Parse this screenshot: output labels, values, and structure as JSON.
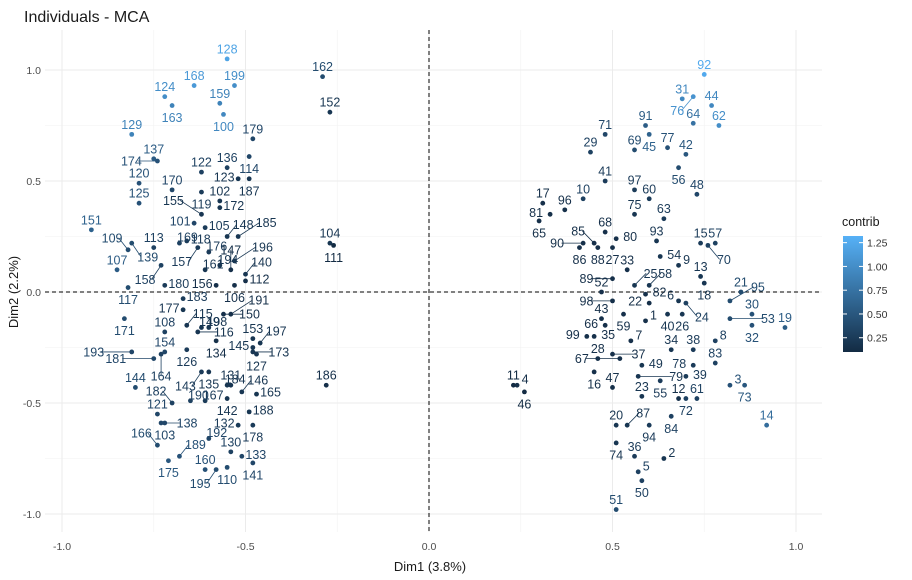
{
  "chart_data": {
    "type": "scatter",
    "title": "Individuals - MCA",
    "xlabel": "Dim1 (3.8%)",
    "ylabel": "Dim2 (2.2%)",
    "xlim": [
      -1.0,
      1.0
    ],
    "ylim": [
      -1.0,
      1.0
    ],
    "xticks": [
      "-1.0",
      "-0.5",
      "0.0",
      "0.5",
      "1.0"
    ],
    "yticks": [
      "-1.0",
      "-0.5",
      "0.0",
      "0.5",
      "1.0"
    ],
    "grid": true,
    "reference_lines": "dashed at x=0 and y=0",
    "legend": {
      "title": "contrib",
      "placement": "right",
      "ticks": [
        "0.25",
        "0.50",
        "0.75",
        "1.00",
        "1.25"
      ],
      "range": [
        0.1,
        1.32
      ],
      "color_low": "#132B43",
      "color_high": "#56B1F7"
    },
    "points": [
      {
        "id": "1",
        "x": 0.59,
        "y": -0.13,
        "c": 0.15
      },
      {
        "id": "2",
        "x": 0.64,
        "y": -0.75,
        "c": 0.2
      },
      {
        "id": "3",
        "x": 0.82,
        "y": -0.42,
        "c": 0.45
      },
      {
        "id": "4",
        "x": 0.24,
        "y": -0.42,
        "c": 0.15
      },
      {
        "id": "5",
        "x": 0.57,
        "y": -0.81,
        "c": 0.3
      },
      {
        "id": "6",
        "x": 0.68,
        "y": -0.04,
        "c": 0.2
      },
      {
        "id": "7",
        "x": 0.55,
        "y": -0.22,
        "c": 0.15
      },
      {
        "id": "8",
        "x": 0.78,
        "y": -0.22,
        "c": 0.3
      },
      {
        "id": "9",
        "x": 0.68,
        "y": 0.12,
        "c": 0.2
      },
      {
        "id": "10",
        "x": 0.42,
        "y": 0.42,
        "c": 0.3
      },
      {
        "id": "11",
        "x": 0.23,
        "y": -0.42,
        "c": 0.1
      },
      {
        "id": "12",
        "x": 0.68,
        "y": -0.48,
        "c": 0.15
      },
      {
        "id": "13",
        "x": 0.74,
        "y": 0.07,
        "c": 0.2
      },
      {
        "id": "14",
        "x": 0.92,
        "y": -0.6,
        "c": 0.7
      },
      {
        "id": "15",
        "x": 0.74,
        "y": 0.22,
        "c": 0.25
      },
      {
        "id": "16",
        "x": 0.45,
        "y": -0.36,
        "c": 0.15
      },
      {
        "id": "17",
        "x": 0.31,
        "y": 0.4,
        "c": 0.15
      },
      {
        "id": "18",
        "x": 0.75,
        "y": 0.04,
        "c": 0.2
      },
      {
        "id": "19",
        "x": 0.97,
        "y": -0.16,
        "c": 0.55
      },
      {
        "id": "20",
        "x": 0.51,
        "y": -0.6,
        "c": 0.2
      },
      {
        "id": "21",
        "x": 0.85,
        "y": 0.0,
        "c": 0.4
      },
      {
        "id": "22",
        "x": 0.6,
        "y": -0.05,
        "c": 0.15
      },
      {
        "id": "23",
        "x": 0.58,
        "y": -0.47,
        "c": 0.2
      },
      {
        "id": "24",
        "x": 0.7,
        "y": -0.05,
        "c": 0.3
      },
      {
        "id": "25",
        "x": 0.56,
        "y": 0.03,
        "c": 0.2
      },
      {
        "id": "26",
        "x": 0.69,
        "y": -0.1,
        "c": 0.2
      },
      {
        "id": "27",
        "x": 0.5,
        "y": 0.2,
        "c": 0.15
      },
      {
        "id": "28",
        "x": 0.46,
        "y": -0.3,
        "c": 0.15
      },
      {
        "id": "29",
        "x": 0.44,
        "y": 0.63,
        "c": 0.3
      },
      {
        "id": "30",
        "x": 0.88,
        "y": -0.1,
        "c": 0.45
      },
      {
        "id": "31",
        "x": 0.69,
        "y": 0.87,
        "c": 0.95
      },
      {
        "id": "32",
        "x": 0.88,
        "y": -0.15,
        "c": 0.45
      },
      {
        "id": "33",
        "x": 0.54,
        "y": 0.1,
        "c": 0.15
      },
      {
        "id": "34",
        "x": 0.66,
        "y": -0.26,
        "c": 0.2
      },
      {
        "id": "35",
        "x": 0.45,
        "y": -0.2,
        "c": 0.15
      },
      {
        "id": "36",
        "x": 0.56,
        "y": -0.74,
        "c": 0.25
      },
      {
        "id": "37",
        "x": 0.5,
        "y": -0.28,
        "c": 0.15
      },
      {
        "id": "38",
        "x": 0.72,
        "y": -0.26,
        "c": 0.25
      },
      {
        "id": "39",
        "x": 0.7,
        "y": -0.38,
        "c": 0.25
      },
      {
        "id": "40",
        "x": 0.65,
        "y": -0.1,
        "c": 0.2
      },
      {
        "id": "41",
        "x": 0.48,
        "y": 0.5,
        "c": 0.25
      },
      {
        "id": "42",
        "x": 0.7,
        "y": 0.62,
        "c": 0.5
      },
      {
        "id": "43",
        "x": 0.47,
        "y": -0.12,
        "c": 0.15
      },
      {
        "id": "44",
        "x": 0.77,
        "y": 0.84,
        "c": 0.95
      },
      {
        "id": "45",
        "x": 0.6,
        "y": 0.71,
        "c": 0.6
      },
      {
        "id": "46",
        "x": 0.26,
        "y": -0.45,
        "c": 0.1
      },
      {
        "id": "47",
        "x": 0.5,
        "y": -0.43,
        "c": 0.15
      },
      {
        "id": "48",
        "x": 0.73,
        "y": 0.44,
        "c": 0.35
      },
      {
        "id": "49",
        "x": 0.58,
        "y": -0.33,
        "c": 0.2
      },
      {
        "id": "50",
        "x": 0.58,
        "y": -0.85,
        "c": 0.3
      },
      {
        "id": "51",
        "x": 0.51,
        "y": -0.98,
        "c": 0.4
      },
      {
        "id": "52",
        "x": 0.47,
        "y": 0.0,
        "c": 0.15
      },
      {
        "id": "53",
        "x": 0.82,
        "y": -0.12,
        "c": 0.4
      },
      {
        "id": "54",
        "x": 0.63,
        "y": 0.16,
        "c": 0.2
      },
      {
        "id": "55",
        "x": 0.63,
        "y": -0.4,
        "c": 0.25
      },
      {
        "id": "56",
        "x": 0.68,
        "y": 0.56,
        "c": 0.4
      },
      {
        "id": "57",
        "x": 0.78,
        "y": 0.22,
        "c": 0.3
      },
      {
        "id": "58",
        "x": 0.6,
        "y": 0.03,
        "c": 0.2
      },
      {
        "id": "59",
        "x": 0.53,
        "y": -0.1,
        "c": 0.15
      },
      {
        "id": "60",
        "x": 0.6,
        "y": 0.42,
        "c": 0.25
      },
      {
        "id": "61",
        "x": 0.73,
        "y": -0.48,
        "c": 0.3
      },
      {
        "id": "62",
        "x": 0.79,
        "y": 0.75,
        "c": 1.0
      },
      {
        "id": "63",
        "x": 0.64,
        "y": 0.33,
        "c": 0.25
      },
      {
        "id": "64",
        "x": 0.72,
        "y": 0.76,
        "c": 0.75
      },
      {
        "id": "65",
        "x": 0.3,
        "y": 0.32,
        "c": 0.15
      },
      {
        "id": "66",
        "x": 0.48,
        "y": -0.15,
        "c": 0.15
      },
      {
        "id": "67",
        "x": 0.52,
        "y": -0.3,
        "c": 0.15
      },
      {
        "id": "68",
        "x": 0.48,
        "y": 0.27,
        "c": 0.15
      },
      {
        "id": "69",
        "x": 0.56,
        "y": 0.64,
        "c": 0.4
      },
      {
        "id": "70",
        "x": 0.76,
        "y": 0.21,
        "c": 0.3
      },
      {
        "id": "71",
        "x": 0.48,
        "y": 0.71,
        "c": 0.35
      },
      {
        "id": "72",
        "x": 0.7,
        "y": -0.48,
        "c": 0.3
      },
      {
        "id": "73",
        "x": 0.86,
        "y": -0.42,
        "c": 0.5
      },
      {
        "id": "74",
        "x": 0.51,
        "y": -0.68,
        "c": 0.2
      },
      {
        "id": "75",
        "x": 0.56,
        "y": 0.35,
        "c": 0.2
      },
      {
        "id": "76",
        "x": 0.72,
        "y": 0.88,
        "c": 1.05
      },
      {
        "id": "77",
        "x": 0.65,
        "y": 0.65,
        "c": 0.45
      },
      {
        "id": "78",
        "x": 0.72,
        "y": -0.33,
        "c": 0.25
      },
      {
        "id": "79",
        "x": 0.57,
        "y": -0.38,
        "c": 0.2
      },
      {
        "id": "80",
        "x": 0.51,
        "y": 0.24,
        "c": 0.15
      },
      {
        "id": "81",
        "x": 0.33,
        "y": 0.35,
        "c": 0.15
      },
      {
        "id": "82",
        "x": 0.59,
        "y": -0.01,
        "c": 0.15
      },
      {
        "id": "83",
        "x": 0.78,
        "y": -0.32,
        "c": 0.3
      },
      {
        "id": "84",
        "x": 0.66,
        "y": -0.56,
        "c": 0.3
      },
      {
        "id": "85",
        "x": 0.45,
        "y": 0.22,
        "c": 0.15
      },
      {
        "id": "86",
        "x": 0.41,
        "y": 0.2,
        "c": 0.15
      },
      {
        "id": "87",
        "x": 0.54,
        "y": -0.6,
        "c": 0.2
      },
      {
        "id": "88",
        "x": 0.46,
        "y": 0.2,
        "c": 0.15
      },
      {
        "id": "89",
        "x": 0.5,
        "y": 0.06,
        "c": 0.15
      },
      {
        "id": "90",
        "x": 0.42,
        "y": 0.22,
        "c": 0.15
      },
      {
        "id": "91",
        "x": 0.59,
        "y": 0.75,
        "c": 0.55
      },
      {
        "id": "92",
        "x": 0.75,
        "y": 0.98,
        "c": 1.25
      },
      {
        "id": "93",
        "x": 0.62,
        "y": 0.23,
        "c": 0.2
      },
      {
        "id": "94",
        "x": 0.6,
        "y": -0.6,
        "c": 0.25
      },
      {
        "id": "95",
        "x": 0.82,
        "y": -0.04,
        "c": 0.4
      },
      {
        "id": "96",
        "x": 0.37,
        "y": 0.37,
        "c": 0.15
      },
      {
        "id": "97",
        "x": 0.56,
        "y": 0.46,
        "c": 0.25
      },
      {
        "id": "98",
        "x": 0.5,
        "y": -0.04,
        "c": 0.15
      },
      {
        "id": "99",
        "x": 0.43,
        "y": -0.2,
        "c": 0.15
      },
      {
        "id": "100",
        "x": -0.56,
        "y": 0.8,
        "c": 0.95
      },
      {
        "id": "101",
        "x": -0.64,
        "y": 0.31,
        "c": 0.35
      },
      {
        "id": "102",
        "x": -0.57,
        "y": 0.41,
        "c": 0.2
      },
      {
        "id": "103",
        "x": -0.72,
        "y": -0.59,
        "c": 0.35
      },
      {
        "id": "104",
        "x": -0.27,
        "y": 0.22,
        "c": 0.2
      },
      {
        "id": "105",
        "x": -0.61,
        "y": 0.29,
        "c": 0.25
      },
      {
        "id": "106",
        "x": -0.53,
        "y": 0.03,
        "c": 0.15
      },
      {
        "id": "107",
        "x": -0.85,
        "y": 0.1,
        "c": 0.55
      },
      {
        "id": "108",
        "x": -0.72,
        "y": -0.18,
        "c": 0.3
      },
      {
        "id": "109",
        "x": -0.82,
        "y": 0.19,
        "c": 0.4
      },
      {
        "id": "110",
        "x": -0.55,
        "y": -0.79,
        "c": 0.4
      },
      {
        "id": "111",
        "x": -0.26,
        "y": 0.21,
        "c": 0.1
      },
      {
        "id": "112",
        "x": -0.5,
        "y": 0.05,
        "c": 0.15
      },
      {
        "id": "113",
        "x": -0.75,
        "y": 0.2,
        "c": 0.3
      },
      {
        "id": "114",
        "x": -0.49,
        "y": 0.61,
        "c": 0.35
      },
      {
        "id": "115",
        "x": -0.66,
        "y": -0.15,
        "c": 0.2
      },
      {
        "id": "116",
        "x": -0.63,
        "y": -0.18,
        "c": 0.2
      },
      {
        "id": "117",
        "x": -0.82,
        "y": 0.02,
        "c": 0.4
      },
      {
        "id": "118",
        "x": -0.66,
        "y": 0.23,
        "c": 0.25
      },
      {
        "id": "119",
        "x": -0.62,
        "y": 0.45,
        "c": 0.25
      },
      {
        "id": "120",
        "x": -0.79,
        "y": 0.49,
        "c": 0.45
      },
      {
        "id": "121",
        "x": -0.74,
        "y": -0.55,
        "c": 0.35
      },
      {
        "id": "122",
        "x": -0.62,
        "y": 0.54,
        "c": 0.3
      },
      {
        "id": "123",
        "x": -0.52,
        "y": 0.51,
        "c": 0.2
      },
      {
        "id": "124",
        "x": -0.72,
        "y": 0.88,
        "c": 1.0
      },
      {
        "id": "125",
        "x": -0.79,
        "y": 0.4,
        "c": 0.45
      },
      {
        "id": "126",
        "x": -0.66,
        "y": -0.26,
        "c": 0.25
      },
      {
        "id": "127",
        "x": -0.47,
        "y": -0.28,
        "c": 0.2
      },
      {
        "id": "128",
        "x": -0.55,
        "y": 1.05,
        "c": 1.2
      },
      {
        "id": "129",
        "x": -0.81,
        "y": 0.71,
        "c": 0.9
      },
      {
        "id": "130",
        "x": -0.54,
        "y": -0.72,
        "c": 0.3
      },
      {
        "id": "131",
        "x": -0.54,
        "y": -0.42,
        "c": 0.2
      },
      {
        "id": "132",
        "x": -0.52,
        "y": -0.6,
        "c": 0.25
      },
      {
        "id": "133",
        "x": -0.51,
        "y": -0.74,
        "c": 0.35
      },
      {
        "id": "134",
        "x": -0.58,
        "y": -0.22,
        "c": 0.15
      },
      {
        "id": "135",
        "x": -0.6,
        "y": -0.36,
        "c": 0.2
      },
      {
        "id": "136",
        "x": -0.55,
        "y": 0.56,
        "c": 0.3
      },
      {
        "id": "137",
        "x": -0.75,
        "y": 0.6,
        "c": 0.55
      },
      {
        "id": "138",
        "x": -0.73,
        "y": -0.59,
        "c": 0.35
      },
      {
        "id": "139",
        "x": -0.81,
        "y": 0.22,
        "c": 0.4
      },
      {
        "id": "140",
        "x": -0.5,
        "y": 0.08,
        "c": 0.2
      },
      {
        "id": "141",
        "x": -0.48,
        "y": -0.77,
        "c": 0.35
      },
      {
        "id": "142",
        "x": -0.55,
        "y": -0.48,
        "c": 0.2
      },
      {
        "id": "143",
        "x": -0.62,
        "y": -0.36,
        "c": 0.25
      },
      {
        "id": "144",
        "x": -0.8,
        "y": -0.43,
        "c": 0.4
      },
      {
        "id": "145",
        "x": -0.48,
        "y": -0.25,
        "c": 0.2
      },
      {
        "id": "146",
        "x": -0.51,
        "y": -0.45,
        "c": 0.2
      },
      {
        "id": "147",
        "x": -0.54,
        "y": 0.1,
        "c": 0.15
      },
      {
        "id": "148",
        "x": -0.55,
        "y": 0.25,
        "c": 0.2
      },
      {
        "id": "149",
        "x": -0.62,
        "y": -0.16,
        "c": 0.2
      },
      {
        "id": "150",
        "x": -0.56,
        "y": -0.1,
        "c": 0.15
      },
      {
        "id": "151",
        "x": -0.92,
        "y": 0.28,
        "c": 0.6
      },
      {
        "id": "152",
        "x": -0.27,
        "y": 0.81,
        "c": 0.2
      },
      {
        "id": "153",
        "x": -0.48,
        "y": -0.21,
        "c": 0.2
      },
      {
        "id": "154",
        "x": -0.72,
        "y": -0.27,
        "c": 0.35
      },
      {
        "id": "155",
        "x": -0.62,
        "y": 0.35,
        "c": 0.2
      },
      {
        "id": "156",
        "x": -0.58,
        "y": 0.03,
        "c": 0.15
      },
      {
        "id": "157",
        "x": -0.63,
        "y": 0.2,
        "c": 0.25
      },
      {
        "id": "158",
        "x": -0.73,
        "y": 0.12,
        "c": 0.3
      },
      {
        "id": "159",
        "x": -0.57,
        "y": 0.85,
        "c": 0.9
      },
      {
        "id": "160",
        "x": -0.61,
        "y": -0.8,
        "c": 0.45
      },
      {
        "id": "161",
        "x": -0.61,
        "y": 0.1,
        "c": 0.2
      },
      {
        "id": "162",
        "x": -0.29,
        "y": 0.97,
        "c": 0.4
      },
      {
        "id": "163",
        "x": -0.7,
        "y": 0.84,
        "c": 0.9
      },
      {
        "id": "164",
        "x": -0.73,
        "y": -0.28,
        "c": 0.3
      },
      {
        "id": "165",
        "x": -0.47,
        "y": -0.46,
        "c": 0.2
      },
      {
        "id": "166",
        "x": -0.74,
        "y": -0.69,
        "c": 0.4
      },
      {
        "id": "167",
        "x": -0.61,
        "y": -0.49,
        "c": 0.25
      },
      {
        "id": "168",
        "x": -0.64,
        "y": 0.93,
        "c": 1.1
      },
      {
        "id": "169",
        "x": -0.68,
        "y": 0.22,
        "c": 0.3
      },
      {
        "id": "170",
        "x": -0.7,
        "y": 0.46,
        "c": 0.35
      },
      {
        "id": "171",
        "x": -0.83,
        "y": -0.12,
        "c": 0.4
      },
      {
        "id": "172",
        "x": -0.57,
        "y": 0.38,
        "c": 0.2
      },
      {
        "id": "173",
        "x": -0.48,
        "y": -0.27,
        "c": 0.2
      },
      {
        "id": "174",
        "x": -0.74,
        "y": 0.59,
        "c": 0.45
      },
      {
        "id": "175",
        "x": -0.71,
        "y": -0.76,
        "c": 0.5
      },
      {
        "id": "176",
        "x": -0.6,
        "y": 0.18,
        "c": 0.25
      },
      {
        "id": "177",
        "x": -0.67,
        "y": -0.08,
        "c": 0.2
      },
      {
        "id": "178",
        "x": -0.48,
        "y": -0.6,
        "c": 0.25
      },
      {
        "id": "179",
        "x": -0.48,
        "y": 0.69,
        "c": 0.35
      },
      {
        "id": "180",
        "x": -0.72,
        "y": 0.03,
        "c": 0.25
      },
      {
        "id": "181",
        "x": -0.75,
        "y": -0.3,
        "c": 0.35
      },
      {
        "id": "182",
        "x": -0.7,
        "y": -0.5,
        "c": 0.3
      },
      {
        "id": "183",
        "x": -0.67,
        "y": -0.03,
        "c": 0.25
      },
      {
        "id": "184",
        "x": -0.55,
        "y": -0.42,
        "c": 0.2
      },
      {
        "id": "185",
        "x": -0.52,
        "y": 0.25,
        "c": 0.2
      },
      {
        "id": "186",
        "x": -0.28,
        "y": -0.42,
        "c": 0.15
      },
      {
        "id": "187",
        "x": -0.49,
        "y": 0.51,
        "c": 0.2
      },
      {
        "id": "188",
        "x": -0.49,
        "y": -0.54,
        "c": 0.2
      },
      {
        "id": "189",
        "x": -0.68,
        "y": -0.74,
        "c": 0.45
      },
      {
        "id": "190",
        "x": -0.65,
        "y": -0.49,
        "c": 0.3
      },
      {
        "id": "191",
        "x": -0.54,
        "y": -0.1,
        "c": 0.15
      },
      {
        "id": "192",
        "x": -0.6,
        "y": -0.66,
        "c": 0.35
      },
      {
        "id": "193",
        "x": -0.81,
        "y": -0.27,
        "c": 0.35
      },
      {
        "id": "194",
        "x": -0.57,
        "y": 0.12,
        "c": 0.2
      },
      {
        "id": "195",
        "x": -0.58,
        "y": -0.8,
        "c": 0.4
      },
      {
        "id": "196",
        "x": -0.53,
        "y": 0.14,
        "c": 0.2
      },
      {
        "id": "197",
        "x": -0.46,
        "y": -0.23,
        "c": 0.2
      },
      {
        "id": "198",
        "x": -0.6,
        "y": -0.16,
        "c": 0.2
      },
      {
        "id": "199",
        "x": -0.53,
        "y": 0.93,
        "c": 1.0
      }
    ]
  }
}
